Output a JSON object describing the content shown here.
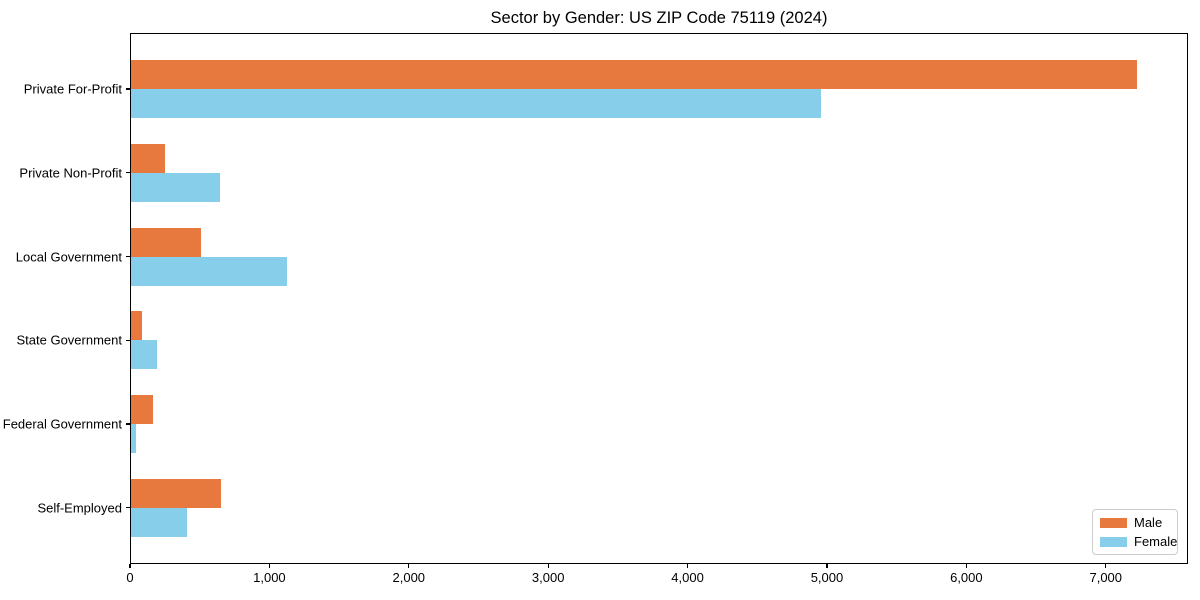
{
  "title": "Sector by Gender: US ZIP Code 75119 (2024)",
  "colors": {
    "male": "#e8793e",
    "female": "#87ceeb",
    "spine": "#000000",
    "legend_border": "#cccccc",
    "background": "#ffffff"
  },
  "legend": {
    "position": "lower right",
    "items": [
      {
        "label": "Male",
        "color": "#e8793e"
      },
      {
        "label": "Female",
        "color": "#87ceeb"
      }
    ]
  },
  "chart_data": {
    "type": "bar",
    "orientation": "horizontal",
    "title": "Sector by Gender: US ZIP Code 75119 (2024)",
    "xlabel": "",
    "ylabel": "",
    "categories": [
      "Private For-Profit",
      "Private Non-Profit",
      "Local Government",
      "State Government",
      "Federal Government",
      "Self-Employed"
    ],
    "series": [
      {
        "name": "Male",
        "color": "#e8793e",
        "values": [
          7220,
          245,
          500,
          80,
          160,
          645
        ]
      },
      {
        "name": "Female",
        "color": "#87ceeb",
        "values": [
          4950,
          635,
          1120,
          185,
          35,
          400
        ]
      }
    ],
    "xlim": [
      0,
      7590
    ],
    "x_ticks": [
      0,
      1000,
      2000,
      3000,
      4000,
      5000,
      6000,
      7000
    ],
    "x_tick_labels": [
      "0",
      "1,000",
      "2,000",
      "3,000",
      "4,000",
      "5,000",
      "6,000",
      "7,000"
    ],
    "grid": false,
    "legend_position": "lower right"
  }
}
